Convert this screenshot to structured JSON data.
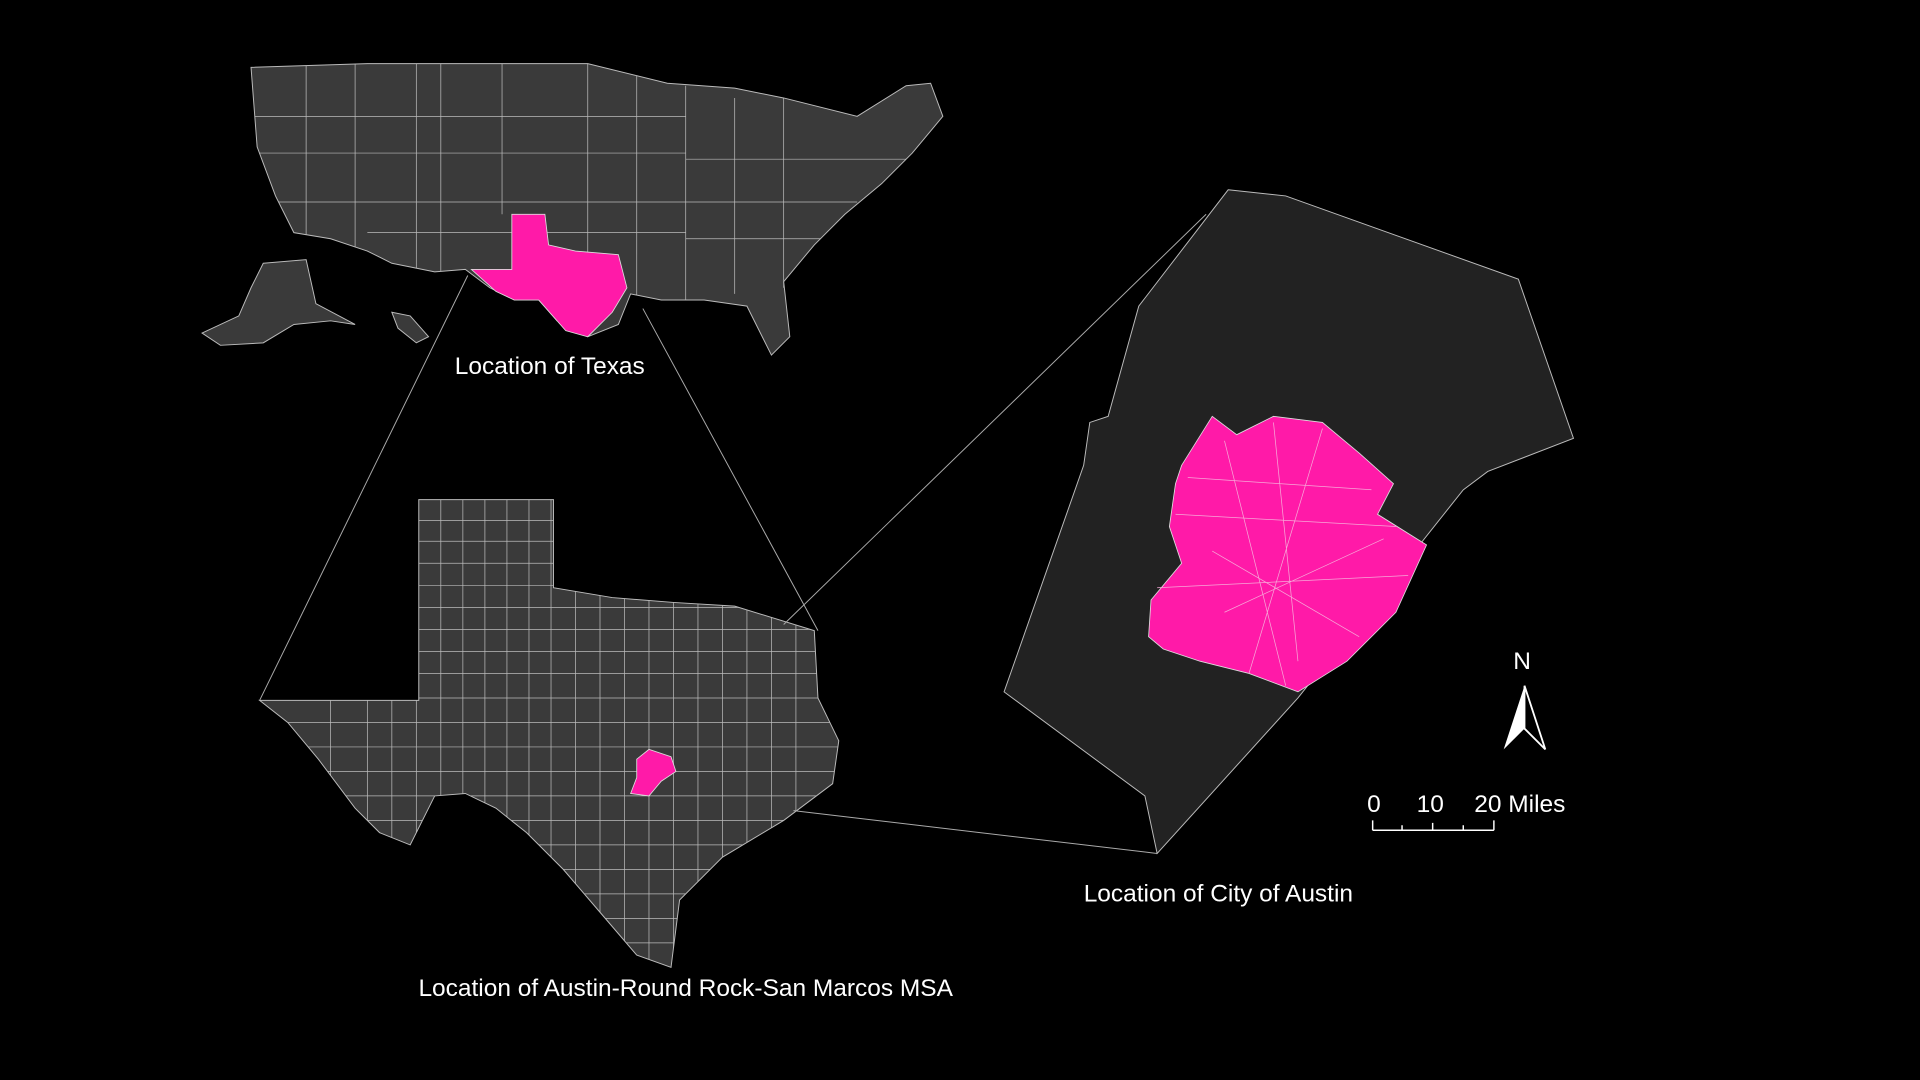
{
  "labels": {
    "texas": "Location of Texas",
    "msa": "Location of Austin-Round Rock-San Marcos MSA",
    "city": "Location of City of Austin"
  },
  "north_arrow": {
    "label": "N"
  },
  "scale_bar": {
    "ticks": [
      "0",
      "10",
      "20 Miles"
    ]
  }
}
